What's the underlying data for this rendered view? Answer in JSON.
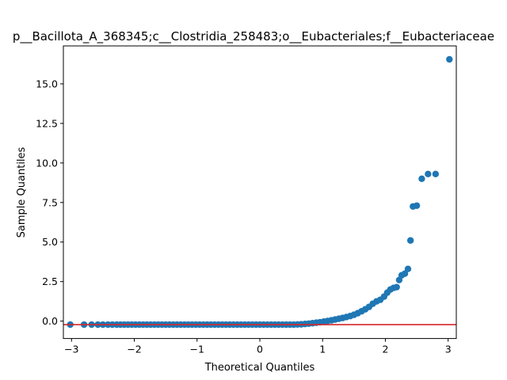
{
  "chart_data": {
    "type": "scatter",
    "title": "p__Bacillota_A_368345;c__Clostridia_258483;o__Eubacteriales;f__Eubacteriaceae",
    "xlabel": "Theoretical Quantiles",
    "ylabel": "Sample Quantiles",
    "xlim": [
      -3.13,
      3.13
    ],
    "ylim": [
      -1.1,
      17.4
    ],
    "xticks": [
      -3,
      -2,
      -1,
      0,
      1,
      2,
      3
    ],
    "xtick_labels": [
      "−3",
      "−2",
      "−1",
      "0",
      "1",
      "2",
      "3"
    ],
    "yticks": [
      0.0,
      2.5,
      5.0,
      7.5,
      10.0,
      12.5,
      15.0
    ],
    "ytick_labels": [
      "0.0",
      "2.5",
      "5.0",
      "7.5",
      "10.0",
      "12.5",
      "15.0"
    ],
    "grid": false,
    "colors": {
      "points": "#1f77b4",
      "reference_line": "#d62728",
      "axes": "#000000"
    },
    "reference_line": {
      "x": [
        -3.13,
        3.13
      ],
      "y": [
        -0.22,
        -0.22
      ]
    },
    "series": [
      {
        "points": [
          [
            -3.02,
            -0.22
          ],
          [
            -2.8,
            -0.22
          ],
          [
            -2.68,
            -0.22
          ],
          [
            -2.58,
            -0.22
          ],
          [
            -2.5,
            -0.22
          ],
          [
            -2.42,
            -0.22
          ],
          [
            -2.35,
            -0.22
          ],
          [
            -2.28,
            -0.22
          ],
          [
            -2.22,
            -0.22
          ],
          [
            -2.16,
            -0.22
          ],
          [
            -2.1,
            -0.22
          ],
          [
            -2.04,
            -0.22
          ],
          [
            -1.98,
            -0.22
          ],
          [
            -1.92,
            -0.22
          ],
          [
            -1.86,
            -0.22
          ],
          [
            -1.8,
            -0.22
          ],
          [
            -1.74,
            -0.22
          ],
          [
            -1.68,
            -0.22
          ],
          [
            -1.62,
            -0.22
          ],
          [
            -1.56,
            -0.22
          ],
          [
            -1.5,
            -0.22
          ],
          [
            -1.44,
            -0.22
          ],
          [
            -1.38,
            -0.22
          ],
          [
            -1.32,
            -0.22
          ],
          [
            -1.26,
            -0.22
          ],
          [
            -1.2,
            -0.22
          ],
          [
            -1.14,
            -0.22
          ],
          [
            -1.08,
            -0.22
          ],
          [
            -1.02,
            -0.22
          ],
          [
            -0.96,
            -0.22
          ],
          [
            -0.9,
            -0.22
          ],
          [
            -0.84,
            -0.22
          ],
          [
            -0.78,
            -0.22
          ],
          [
            -0.72,
            -0.22
          ],
          [
            -0.66,
            -0.22
          ],
          [
            -0.6,
            -0.22
          ],
          [
            -0.54,
            -0.22
          ],
          [
            -0.48,
            -0.22
          ],
          [
            -0.42,
            -0.22
          ],
          [
            -0.36,
            -0.22
          ],
          [
            -0.3,
            -0.22
          ],
          [
            -0.24,
            -0.22
          ],
          [
            -0.18,
            -0.22
          ],
          [
            -0.12,
            -0.22
          ],
          [
            -0.06,
            -0.22
          ],
          [
            0.0,
            -0.22
          ],
          [
            0.06,
            -0.22
          ],
          [
            0.12,
            -0.22
          ],
          [
            0.18,
            -0.22
          ],
          [
            0.24,
            -0.22
          ],
          [
            0.3,
            -0.22
          ],
          [
            0.36,
            -0.22
          ],
          [
            0.42,
            -0.22
          ],
          [
            0.48,
            -0.22
          ],
          [
            0.54,
            -0.22
          ],
          [
            0.6,
            -0.21
          ],
          [
            0.66,
            -0.2
          ],
          [
            0.72,
            -0.18
          ],
          [
            0.78,
            -0.16
          ],
          [
            0.84,
            -0.13
          ],
          [
            0.9,
            -0.1
          ],
          [
            0.96,
            -0.07
          ],
          [
            1.02,
            -0.03
          ],
          [
            1.08,
            0.01
          ],
          [
            1.14,
            0.05
          ],
          [
            1.2,
            0.1
          ],
          [
            1.26,
            0.15
          ],
          [
            1.32,
            0.2
          ],
          [
            1.38,
            0.26
          ],
          [
            1.44,
            0.32
          ],
          [
            1.5,
            0.4
          ],
          [
            1.56,
            0.5
          ],
          [
            1.62,
            0.62
          ],
          [
            1.68,
            0.75
          ],
          [
            1.74,
            0.9
          ],
          [
            1.8,
            1.1
          ],
          [
            1.86,
            1.25
          ],
          [
            1.92,
            1.35
          ],
          [
            1.98,
            1.55
          ],
          [
            2.03,
            1.8
          ],
          [
            2.08,
            2.0
          ],
          [
            2.13,
            2.1
          ],
          [
            2.18,
            2.15
          ],
          [
            2.22,
            2.6
          ],
          [
            2.26,
            2.9
          ],
          [
            2.31,
            3.0
          ],
          [
            2.36,
            3.3
          ],
          [
            2.4,
            5.1
          ],
          [
            2.44,
            7.25
          ],
          [
            2.5,
            7.3
          ],
          [
            2.58,
            9.0
          ],
          [
            2.68,
            9.3
          ],
          [
            2.8,
            9.3
          ],
          [
            3.02,
            16.55
          ]
        ]
      }
    ]
  }
}
